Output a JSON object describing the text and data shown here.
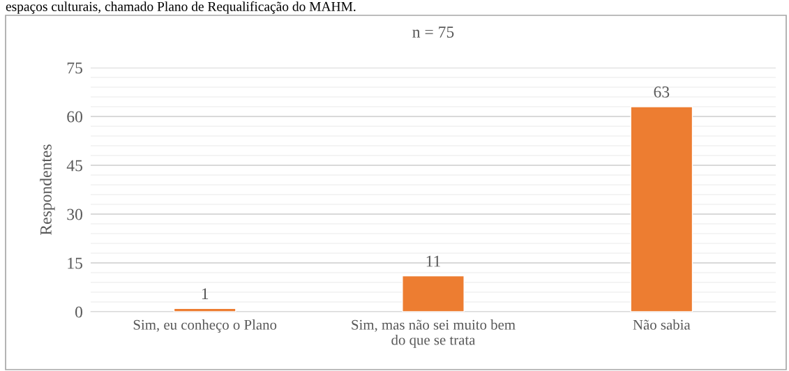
{
  "chart_data": {
    "type": "bar",
    "title": "n = 75",
    "ylabel": "Respondentes",
    "categories": [
      "Sim, eu conheço o Plano",
      "Sim, mas não sei muito bem\ndo que se trata",
      "Não sabia"
    ],
    "values": [
      1,
      11,
      63
    ],
    "color": "#ed7d31",
    "data_labels": true,
    "ylim": [
      0,
      75
    ],
    "yticks": [
      0,
      15,
      30,
      45,
      60,
      75
    ],
    "grid": "y",
    "annotations": [
      "espaços culturais, chamado Plano de Requalificação do MAHM."
    ]
  }
}
